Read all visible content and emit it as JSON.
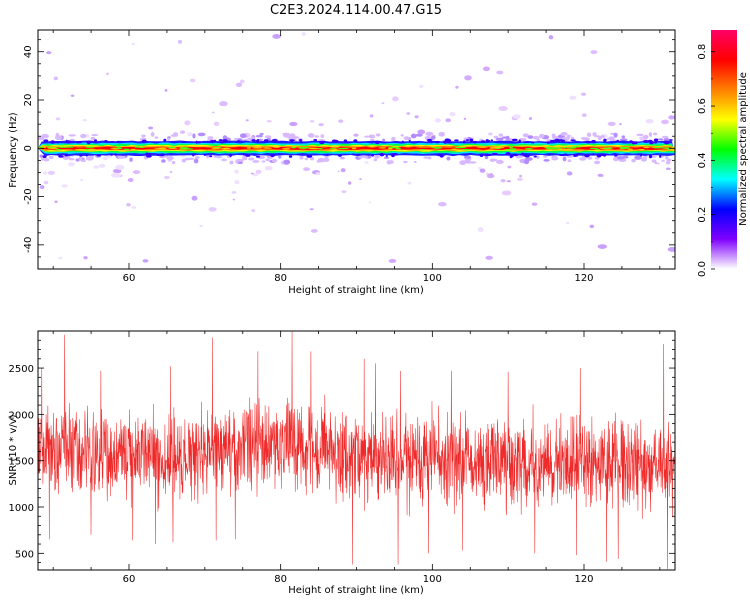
{
  "title": "C2E3.2024.114.00.47.G15",
  "chart_data": [
    {
      "type": "heatmap",
      "xlabel": "Height of straight line (km)",
      "ylabel": "Frequency (Hz)",
      "xlim": [
        48,
        132
      ],
      "ylim": [
        -50,
        49
      ],
      "x_ticks": [
        60,
        80,
        100,
        120
      ],
      "y_ticks": [
        -40,
        -20,
        0,
        20,
        40
      ],
      "colorbar": {
        "label": "Normalized spectral amplitude",
        "range": [
          0.0,
          0.88
        ],
        "ticks": [
          0.0,
          0.2,
          0.4,
          0.6,
          0.8
        ],
        "colormap": [
          "#ffffff",
          "#7f00ff",
          "#0000ff",
          "#00ffff",
          "#00ff00",
          "#ffff00",
          "#ff7f00",
          "#ff0000",
          "#ff0066"
        ]
      },
      "band": {
        "center_hz": 0,
        "halfwidth_hz": 3
      }
    },
    {
      "type": "line",
      "xlabel": "Height of straight line (km)",
      "ylabel": "SNR (10 * v/v)",
      "xlim": [
        48,
        132
      ],
      "ylim": [
        320,
        2900
      ],
      "x_ticks": [
        60,
        80,
        100,
        120
      ],
      "y_ticks": [
        500,
        1000,
        1500,
        2000,
        2500
      ],
      "line_color": "#ee2a2a",
      "trend": [
        {
          "x": 48,
          "y": 1640
        },
        {
          "x": 55,
          "y": 1600
        },
        {
          "x": 60,
          "y": 1560
        },
        {
          "x": 65,
          "y": 1550
        },
        {
          "x": 70,
          "y": 1600
        },
        {
          "x": 75,
          "y": 1680
        },
        {
          "x": 80,
          "y": 1700
        },
        {
          "x": 85,
          "y": 1640
        },
        {
          "x": 90,
          "y": 1550
        },
        {
          "x": 95,
          "y": 1520
        },
        {
          "x": 100,
          "y": 1550
        },
        {
          "x": 105,
          "y": 1500
        },
        {
          "x": 110,
          "y": 1470
        },
        {
          "x": 115,
          "y": 1470
        },
        {
          "x": 120,
          "y": 1460
        },
        {
          "x": 125,
          "y": 1450
        },
        {
          "x": 132,
          "y": 1450
        }
      ],
      "noise_range": [
        -650,
        650
      ],
      "spikes": [
        {
          "x": 48.5,
          "y": 2500
        },
        {
          "x": 51.5,
          "y": 2860
        },
        {
          "x": 56.3,
          "y": 2470
        },
        {
          "x": 65.5,
          "y": 2520
        },
        {
          "x": 71.0,
          "y": 2830
        },
        {
          "x": 77.0,
          "y": 2680
        },
        {
          "x": 81.5,
          "y": 2900
        },
        {
          "x": 84.0,
          "y": 2680
        },
        {
          "x": 91.0,
          "y": 2600
        },
        {
          "x": 92.5,
          "y": 2550
        },
        {
          "x": 95.8,
          "y": 2470
        },
        {
          "x": 102.5,
          "y": 2470
        },
        {
          "x": 110.0,
          "y": 2460
        },
        {
          "x": 119.5,
          "y": 2500
        },
        {
          "x": 130.5,
          "y": 2760
        },
        {
          "x": 132.0,
          "y": 2600
        }
      ],
      "dips": [
        {
          "x": 49.5,
          "y": 650
        },
        {
          "x": 55.0,
          "y": 700
        },
        {
          "x": 60.5,
          "y": 640
        },
        {
          "x": 63.5,
          "y": 600
        },
        {
          "x": 65.8,
          "y": 620
        },
        {
          "x": 71.5,
          "y": 640
        },
        {
          "x": 74.0,
          "y": 650
        },
        {
          "x": 89.5,
          "y": 380
        },
        {
          "x": 95.5,
          "y": 380
        },
        {
          "x": 99.5,
          "y": 500
        },
        {
          "x": 104.0,
          "y": 530
        },
        {
          "x": 113.5,
          "y": 500
        },
        {
          "x": 119.0,
          "y": 480
        },
        {
          "x": 123.0,
          "y": 410
        },
        {
          "x": 124.5,
          "y": 440
        },
        {
          "x": 131.0,
          "y": 330
        }
      ]
    }
  ]
}
